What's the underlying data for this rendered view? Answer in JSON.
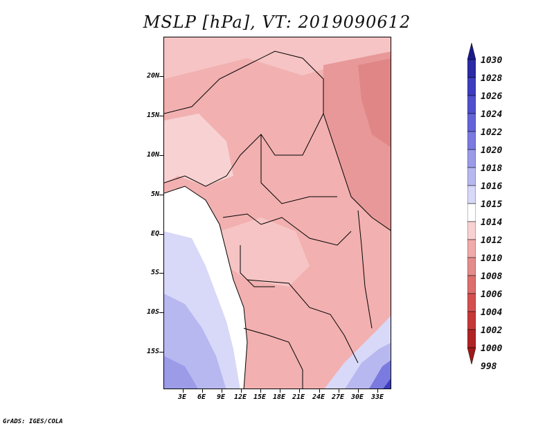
{
  "title": "MSLP [hPa], VT: 2019090612",
  "credit": "GrADS: IGES/COLA",
  "y_axis_labels": [
    "20N",
    "15N",
    "10N",
    "5N",
    "EQ",
    "5S",
    "10S",
    "15S"
  ],
  "x_axis_labels": [
    "3E",
    "6E",
    "9E",
    "12E",
    "15E",
    "18E",
    "21E",
    "24E",
    "27E",
    "30E",
    "33E"
  ],
  "colorbar": {
    "labels": [
      "1030",
      "1028",
      "1026",
      "1024",
      "1022",
      "1020",
      "1018",
      "1016",
      "1015",
      "1014",
      "1012",
      "1010",
      "1008",
      "1006",
      "1004",
      "1002",
      "1000",
      "998"
    ],
    "colors": [
      "#1a1a8c",
      "#2b2ba5",
      "#3d3dbf",
      "#5050cc",
      "#6464d8",
      "#7a7ae0",
      "#9b9be8",
      "#b8b8f0",
      "#d8d8f8",
      "#ffffff",
      "#f8d2d2",
      "#f0aaaa",
      "#e48c8c",
      "#dc6e6e",
      "#d45050",
      "#c43838",
      "#b02424",
      "#a01818"
    ]
  },
  "colors": {
    "land_base": "#f2b0b0",
    "ocean_low": "#ffffff",
    "south_high": "#b8b8f0",
    "border_lines": "#000000"
  }
}
